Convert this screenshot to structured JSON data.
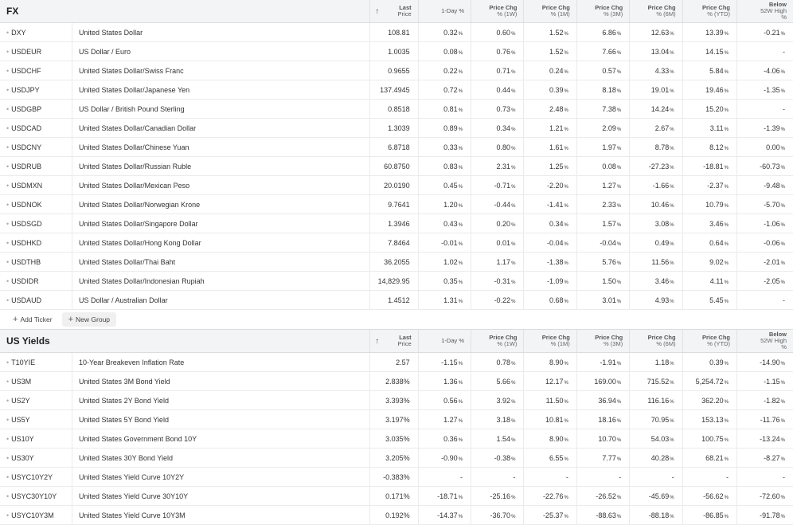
{
  "headers": {
    "arrow": "↑",
    "last": [
      "Last",
      "Price"
    ],
    "day": "1-Day %",
    "w1": [
      "Price Chg",
      "% (1W)"
    ],
    "m1": [
      "Price Chg",
      "% (1M)"
    ],
    "m3": [
      "Price Chg",
      "% (3M)"
    ],
    "m6": [
      "Price Chg",
      "% (6M)"
    ],
    "ytd": [
      "Price Chg",
      "% (YTD)"
    ],
    "high": [
      "Below",
      "52W High",
      "%"
    ]
  },
  "actions": {
    "add_ticker": "Add Ticker",
    "new_group": "New Group"
  },
  "groups": [
    {
      "title": "FX",
      "rows": [
        {
          "ticker": "DXY",
          "name": "United States Dollar",
          "last": "108.81",
          "cells": [
            "0.32",
            "0.60",
            "1.52",
            "6.86",
            "12.63",
            "13.39",
            "-0.21"
          ]
        },
        {
          "ticker": "USDEUR",
          "name": "US Dollar / Euro",
          "last": "1.0035",
          "cells": [
            "0.08",
            "0.76",
            "1.52",
            "7.66",
            "13.04",
            "14.15",
            "-"
          ]
        },
        {
          "ticker": "USDCHF",
          "name": "United States Dollar/Swiss Franc",
          "last": "0.9655",
          "cells": [
            "0.22",
            "0.71",
            "0.24",
            "0.57",
            "4.33",
            "5.84",
            "-4.06"
          ]
        },
        {
          "ticker": "USDJPY",
          "name": "United States Dollar/Japanese Yen",
          "last": "137.4945",
          "cells": [
            "0.72",
            "0.44",
            "0.39",
            "8.18",
            "19.01",
            "19.46",
            "-1.35"
          ]
        },
        {
          "ticker": "USDGBP",
          "name": "US Dollar / British Pound Sterling",
          "last": "0.8518",
          "cells": [
            "0.81",
            "0.73",
            "2.48",
            "7.38",
            "14.24",
            "15.20",
            "-"
          ]
        },
        {
          "ticker": "USDCAD",
          "name": "United States Dollar/Canadian Dollar",
          "last": "1.3039",
          "cells": [
            "0.89",
            "0.34",
            "1.21",
            "2.09",
            "2.67",
            "3.11",
            "-1.39"
          ]
        },
        {
          "ticker": "USDCNY",
          "name": "United States Dollar/Chinese Yuan",
          "last": "6.8718",
          "cells": [
            "0.33",
            "0.80",
            "1.61",
            "1.97",
            "8.78",
            "8.12",
            "0.00"
          ]
        },
        {
          "ticker": "USDRUB",
          "name": "United States Dollar/Russian Ruble",
          "last": "60.8750",
          "cells": [
            "0.83",
            "2.31",
            "1.25",
            "0.08",
            "-27.23",
            "-18.81",
            "-60.73"
          ]
        },
        {
          "ticker": "USDMXN",
          "name": "United States Dollar/Mexican Peso",
          "last": "20.0190",
          "cells": [
            "0.45",
            "-0.71",
            "-2.20",
            "1.27",
            "-1.66",
            "-2.37",
            "-9.48"
          ]
        },
        {
          "ticker": "USDNOK",
          "name": "United States Dollar/Norwegian Krone",
          "last": "9.7641",
          "cells": [
            "1.20",
            "-0.44",
            "-1.41",
            "2.33",
            "10.46",
            "10.79",
            "-5.70"
          ]
        },
        {
          "ticker": "USDSGD",
          "name": "United States Dollar/Singapore Dollar",
          "last": "1.3946",
          "cells": [
            "0.43",
            "0.20",
            "0.34",
            "1.57",
            "3.08",
            "3.46",
            "-1.06"
          ]
        },
        {
          "ticker": "USDHKD",
          "name": "United States Dollar/Hong Kong Dollar",
          "last": "7.8464",
          "cells": [
            "-0.01",
            "0.01",
            "-0.04",
            "-0.04",
            "0.49",
            "0.64",
            "-0.06"
          ]
        },
        {
          "ticker": "USDTHB",
          "name": "United States Dollar/Thai Baht",
          "last": "36.2055",
          "cells": [
            "1.02",
            "1.17",
            "-1.38",
            "5.76",
            "11.56",
            "9.02",
            "-2.01"
          ]
        },
        {
          "ticker": "USDIDR",
          "name": "United States Dollar/Indonesian Rupiah",
          "last": "14,829.95",
          "cells": [
            "0.35",
            "-0.31",
            "-1.09",
            "1.50",
            "3.46",
            "4.11",
            "-2.05"
          ]
        },
        {
          "ticker": "USDAUD",
          "name": "US Dollar / Australian Dollar",
          "last": "1.4512",
          "cells": [
            "1.31",
            "-0.22",
            "0.68",
            "3.01",
            "4.93",
            "5.45",
            "-"
          ]
        }
      ]
    },
    {
      "title": "US Yields",
      "rows": [
        {
          "ticker": "T10YIE",
          "name": "10-Year Breakeven Inflation Rate",
          "last": "2.57",
          "cells": [
            "-1.15",
            "0.78",
            "8.90",
            "-1.91",
            "1.18",
            "0.39",
            "-14.90"
          ]
        },
        {
          "ticker": "US3M",
          "name": "United States 3M Bond Yield",
          "last": "2.838%",
          "cells": [
            "1.36",
            "5.66",
            "12.17",
            "169.00",
            "715.52",
            "5,254.72",
            "-1.15"
          ]
        },
        {
          "ticker": "US2Y",
          "name": "United States 2Y Bond Yield",
          "last": "3.393%",
          "cells": [
            "0.56",
            "3.92",
            "11.50",
            "36.94",
            "116.16",
            "362.20",
            "-1.82"
          ]
        },
        {
          "ticker": "US5Y",
          "name": "United States 5Y Bond Yield",
          "last": "3.197%",
          "cells": [
            "1.27",
            "3.18",
            "10.81",
            "18.16",
            "70.95",
            "153.13",
            "-11.76"
          ]
        },
        {
          "ticker": "US10Y",
          "name": "United States Government Bond 10Y",
          "last": "3.035%",
          "cells": [
            "0.36",
            "1.54",
            "8.90",
            "10.70",
            "54.03",
            "100.75",
            "-13.24"
          ]
        },
        {
          "ticker": "US30Y",
          "name": "United States 30Y Bond Yield",
          "last": "3.205%",
          "cells": [
            "-0.90",
            "-0.38",
            "6.55",
            "7.77",
            "40.28",
            "68.21",
            "-8.27"
          ]
        },
        {
          "ticker": "USYC10Y2Y",
          "name": "United States Yield Curve 10Y2Y",
          "last": "-0.383%",
          "cells": [
            "-",
            "-",
            "-",
            "-",
            "-",
            "-",
            "-"
          ]
        },
        {
          "ticker": "USYC30Y10Y",
          "name": "United States Yield Curve 30Y10Y",
          "last": "0.171%",
          "cells": [
            "-18.71",
            "-25.16",
            "-22.76",
            "-26.52",
            "-45.69",
            "-56.62",
            "-72.60"
          ]
        },
        {
          "ticker": "USYC10Y3M",
          "name": "United States Yield Curve 10Y3M",
          "last": "0.192%",
          "cells": [
            "-14.37",
            "-36.70",
            "-25.37",
            "-88.63",
            "-88.18",
            "-86.85",
            "-91.78"
          ]
        }
      ]
    }
  ],
  "colors": {
    "positive": "#1b8a3a",
    "negative": "#d32f2f",
    "header_bg": "#f3f4f6"
  }
}
